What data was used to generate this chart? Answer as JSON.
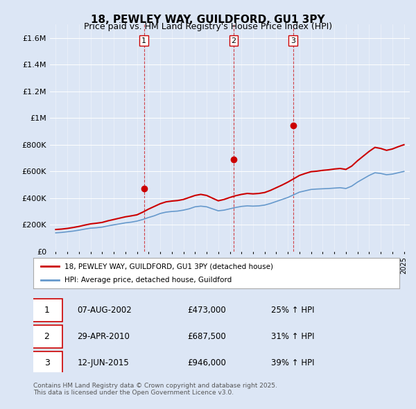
{
  "title": "18, PEWLEY WAY, GUILDFORD, GU1 3PY",
  "subtitle": "Price paid vs. HM Land Registry's House Price Index (HPI)",
  "ylabel_ticks": [
    "£0",
    "£200K",
    "£400K",
    "£600K",
    "£800K",
    "£1M",
    "£1.2M",
    "£1.4M",
    "£1.6M"
  ],
  "ylim": [
    0,
    1700000
  ],
  "yticks": [
    0,
    200000,
    400000,
    600000,
    800000,
    1000000,
    1200000,
    1400000,
    1600000
  ],
  "background_color": "#dce6f5",
  "plot_bg_color": "#dce6f5",
  "red_line_color": "#cc0000",
  "blue_line_color": "#6699cc",
  "sale_marker_color": "#cc0000",
  "legend_label_red": "18, PEWLEY WAY, GUILDFORD, GU1 3PY (detached house)",
  "legend_label_blue": "HPI: Average price, detached house, Guildford",
  "sales": [
    {
      "num": 1,
      "date": "07-AUG-2002",
      "price": 473000,
      "pct": "25%",
      "year": 2002.6
    },
    {
      "num": 2,
      "date": "29-APR-2010",
      "price": 687500,
      "pct": "31%",
      "year": 2010.33
    },
    {
      "num": 3,
      "date": "12-JUN-2015",
      "price": 946000,
      "pct": "39%",
      "year": 2015.45
    }
  ],
  "footnote": "Contains HM Land Registry data © Crown copyright and database right 2025.\nThis data is licensed under the Open Government Licence v3.0.",
  "hpi_data": {
    "years": [
      1995.0,
      1995.5,
      1996.0,
      1996.5,
      1997.0,
      1997.5,
      1998.0,
      1998.5,
      1999.0,
      1999.5,
      2000.0,
      2000.5,
      2001.0,
      2001.5,
      2002.0,
      2002.5,
      2003.0,
      2003.5,
      2004.0,
      2004.5,
      2005.0,
      2005.5,
      2006.0,
      2006.5,
      2007.0,
      2007.5,
      2008.0,
      2008.5,
      2009.0,
      2009.5,
      2010.0,
      2010.5,
      2011.0,
      2011.5,
      2012.0,
      2012.5,
      2013.0,
      2013.5,
      2014.0,
      2014.5,
      2015.0,
      2015.5,
      2016.0,
      2016.5,
      2017.0,
      2017.5,
      2018.0,
      2018.5,
      2019.0,
      2019.5,
      2020.0,
      2020.5,
      2021.0,
      2021.5,
      2022.0,
      2022.5,
      2023.0,
      2023.5,
      2024.0,
      2024.5,
      2025.0
    ],
    "hpi_values": [
      140000,
      143000,
      148000,
      153000,
      160000,
      168000,
      175000,
      178000,
      183000,
      192000,
      200000,
      207000,
      215000,
      220000,
      228000,
      240000,
      255000,
      268000,
      285000,
      295000,
      300000,
      303000,
      310000,
      320000,
      335000,
      340000,
      335000,
      320000,
      305000,
      310000,
      320000,
      330000,
      338000,
      342000,
      340000,
      342000,
      348000,
      360000,
      375000,
      390000,
      405000,
      425000,
      445000,
      455000,
      465000,
      468000,
      470000,
      472000,
      475000,
      478000,
      472000,
      490000,
      520000,
      545000,
      570000,
      590000,
      585000,
      575000,
      580000,
      590000,
      600000
    ],
    "red_values": [
      165000,
      168000,
      173000,
      180000,
      188000,
      198000,
      207000,
      212000,
      218000,
      230000,
      240000,
      250000,
      260000,
      267000,
      275000,
      295000,
      318000,
      338000,
      358000,
      372000,
      378000,
      382000,
      390000,
      405000,
      420000,
      428000,
      420000,
      400000,
      380000,
      390000,
      405000,
      418000,
      428000,
      435000,
      432000,
      435000,
      442000,
      458000,
      478000,
      498000,
      520000,
      545000,
      570000,
      585000,
      598000,
      602000,
      608000,
      612000,
      618000,
      622000,
      615000,
      640000,
      680000,
      715000,
      750000,
      780000,
      772000,
      758000,
      768000,
      785000,
      800000
    ]
  }
}
